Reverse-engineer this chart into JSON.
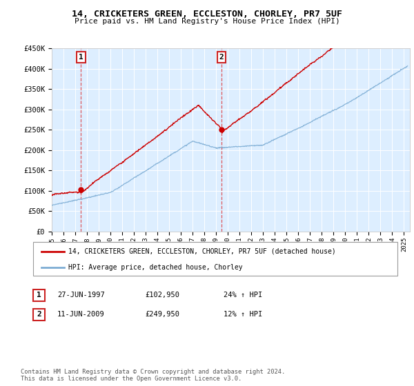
{
  "title": "14, CRICKETERS GREEN, ECCLESTON, CHORLEY, PR7 5UF",
  "subtitle": "Price paid vs. HM Land Registry's House Price Index (HPI)",
  "ylim": [
    0,
    450000
  ],
  "yticks": [
    0,
    50000,
    100000,
    150000,
    200000,
    250000,
    300000,
    350000,
    400000,
    450000
  ],
  "ytick_labels": [
    "£0",
    "£50K",
    "£100K",
    "£150K",
    "£200K",
    "£250K",
    "£300K",
    "£350K",
    "£400K",
    "£450K"
  ],
  "sale1_date": 1997.49,
  "sale1_price": 102950,
  "sale1_label": "1",
  "sale2_date": 2009.44,
  "sale2_price": 249950,
  "sale2_label": "2",
  "hpi_color": "#7dadd4",
  "price_color": "#cc0000",
  "vline_color": "#dd3333",
  "background_color": "#ddeeff",
  "legend_label_price": "14, CRICKETERS GREEN, ECCLESTON, CHORLEY, PR7 5UF (detached house)",
  "legend_label_hpi": "HPI: Average price, detached house, Chorley",
  "annotation1_date": "27-JUN-1997",
  "annotation1_price": "£102,950",
  "annotation1_hpi": "24% ↑ HPI",
  "annotation2_date": "11-JUN-2009",
  "annotation2_price": "£249,950",
  "annotation2_hpi": "12% ↑ HPI",
  "footer": "Contains HM Land Registry data © Crown copyright and database right 2024.\nThis data is licensed under the Open Government Licence v3.0.",
  "box1_color": "#cc2222",
  "box2_color": "#cc2222"
}
